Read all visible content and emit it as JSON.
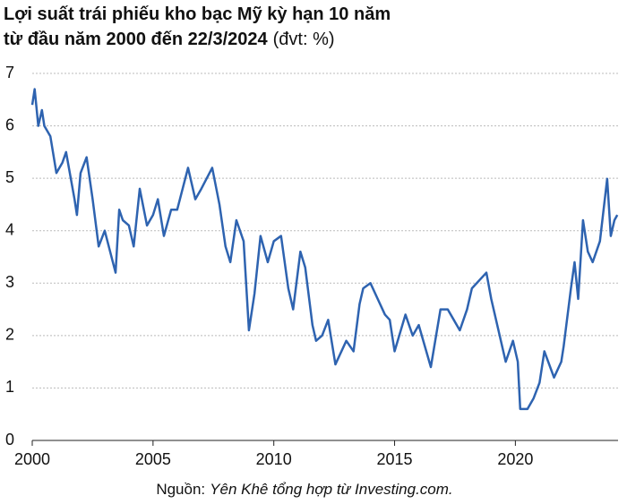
{
  "chart_data": {
    "type": "line",
    "title_lines": [
      "Lợi suất trái phiếu kho bạc Mỹ kỳ hạn 10 năm",
      "từ đầu năm 2000 đến 22/3/2024"
    ],
    "unit_note": "(đvt: %)",
    "source_label": "Nguồn:",
    "source_text": "Yên Khê tổng hợp từ Investing.com.",
    "x": [
      2000.0,
      2000.1,
      2000.25,
      2000.4,
      2000.5,
      2000.75,
      2001.0,
      2001.25,
      2001.4,
      2001.75,
      2001.85,
      2002.0,
      2002.25,
      2002.5,
      2002.75,
      2003.0,
      2003.45,
      2003.6,
      2003.75,
      2004.0,
      2004.2,
      2004.45,
      2004.75,
      2005.0,
      2005.2,
      2005.45,
      2005.75,
      2006.0,
      2006.45,
      2006.75,
      2007.0,
      2007.45,
      2007.75,
      2008.0,
      2008.2,
      2008.45,
      2008.75,
      2008.97,
      2009.2,
      2009.45,
      2009.75,
      2010.0,
      2010.3,
      2010.6,
      2010.8,
      2011.1,
      2011.3,
      2011.6,
      2011.75,
      2012.0,
      2012.25,
      2012.55,
      2012.8,
      2013.0,
      2013.3,
      2013.55,
      2013.7,
      2014.0,
      2014.3,
      2014.6,
      2014.8,
      2015.0,
      2015.45,
      2015.75,
      2016.0,
      2016.5,
      2016.9,
      2017.2,
      2017.7,
      2018.0,
      2018.2,
      2018.8,
      2019.0,
      2019.6,
      2019.9,
      2020.1,
      2020.2,
      2020.5,
      2020.75,
      2021.0,
      2021.2,
      2021.6,
      2021.9,
      2022.0,
      2022.3,
      2022.45,
      2022.6,
      2022.8,
      2023.0,
      2023.2,
      2023.5,
      2023.8,
      2023.95,
      2024.1,
      2024.22
    ],
    "values": [
      6.4,
      6.7,
      6.0,
      6.3,
      6.0,
      5.8,
      5.1,
      5.3,
      5.5,
      4.6,
      4.3,
      5.1,
      5.4,
      4.6,
      3.7,
      4.0,
      3.2,
      4.4,
      4.2,
      4.1,
      3.7,
      4.8,
      4.1,
      4.3,
      4.6,
      3.9,
      4.4,
      4.4,
      5.2,
      4.6,
      4.8,
      5.2,
      4.5,
      3.7,
      3.4,
      4.2,
      3.8,
      2.1,
      2.8,
      3.9,
      3.4,
      3.8,
      3.9,
      2.9,
      2.5,
      3.6,
      3.3,
      2.2,
      1.9,
      2.0,
      2.3,
      1.45,
      1.7,
      1.9,
      1.7,
      2.6,
      2.9,
      3.0,
      2.7,
      2.4,
      2.3,
      1.7,
      2.4,
      2.0,
      2.2,
      1.4,
      2.5,
      2.5,
      2.1,
      2.5,
      2.9,
      3.2,
      2.7,
      1.5,
      1.9,
      1.5,
      0.6,
      0.6,
      0.8,
      1.1,
      1.7,
      1.2,
      1.5,
      1.8,
      2.9,
      3.4,
      2.7,
      4.2,
      3.6,
      3.4,
      3.8,
      4.99,
      3.9,
      4.2,
      4.3
    ],
    "color": "#2e63b0",
    "xlim": [
      2000,
      2024.25
    ],
    "xticks": [
      2000,
      2005,
      2010,
      2015,
      2020
    ],
    "ylim": [
      0,
      7
    ],
    "yticks": [
      0,
      1,
      2,
      3,
      4,
      5,
      6,
      7
    ],
    "grid": true
  }
}
